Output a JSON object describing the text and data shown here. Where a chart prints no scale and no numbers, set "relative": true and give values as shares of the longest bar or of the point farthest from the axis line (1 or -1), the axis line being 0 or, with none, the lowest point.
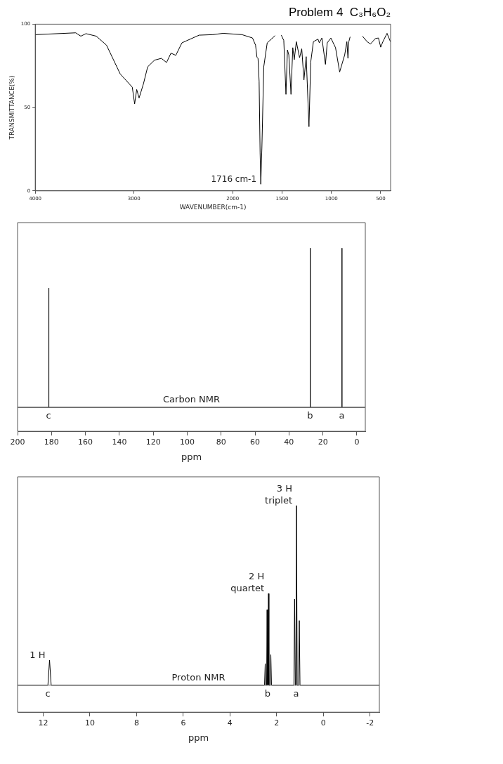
{
  "chart_data": [
    {
      "type": "line",
      "title": "Problem 4  C₃H₆O₂",
      "xlabel": "WAVENUMBER(cm-1)",
      "ylabel": "TRANSMITTANCE(%)",
      "xlim": [
        4000,
        400
      ],
      "xticks": [
        4000,
        3000,
        2000,
        1500,
        1000,
        500
      ],
      "ylim": [
        0,
        100
      ],
      "yticks": [
        0,
        50,
        100
      ],
      "grid": false,
      "legend": false,
      "marker": "none",
      "line_style": "solid",
      "annotations": [
        {
          "text": "1716 cm-1",
          "x": 1716,
          "y": 4
        }
      ],
      "series": [
        {
          "color": "#000000",
          "x": [
            4000,
            3590,
            3538,
            3486,
            3382,
            3278,
            3139,
            3017,
            2993,
            2972,
            2948,
            2903,
            2861,
            2792,
            2722,
            2670,
            2625,
            2576,
            2514,
            2340,
            2201,
            2097,
            1905,
            1799,
            1768,
            1754,
            1743,
            1732,
            1722,
            1715,
            1704,
            1685,
            1650,
            1570,
            1540,
            1507,
            1482,
            1460,
            1445,
            1431,
            1409,
            1391,
            1376,
            1355,
            1322,
            1300,
            1278,
            1255,
            1227,
            1209,
            1182,
            1136,
            1122,
            1096,
            1060,
            1042,
            1005,
            958,
            916,
            865,
            843,
            832,
            823,
            810,
            750,
            685,
            638,
            604,
            554,
            523,
            500,
            478,
            436,
            402
          ],
          "values": [
            93.7,
            94.8,
            92.8,
            94.3,
            92.8,
            87.4,
            70.1,
            62.2,
            52.2,
            60.8,
            55.7,
            64.4,
            74.4,
            78.4,
            79.5,
            77.0,
            82.6,
            81.3,
            88.8,
            93.4,
            93.7,
            94.5,
            93.7,
            91.7,
            87.4,
            80.2,
            79.5,
            65.8,
            22.7,
            4.0,
            25.6,
            74.4,
            88.8,
            93.1,
            null,
            93.4,
            90.2,
            57.9,
            84.5,
            81.6,
            57.9,
            85.9,
            78.7,
            89.5,
            79.9,
            85.2,
            66.5,
            80.5,
            38.5,
            77.3,
            89.5,
            91.0,
            88.8,
            91.7,
            75.9,
            88.8,
            91.7,
            85.9,
            71.3,
            81.6,
            89.5,
            79.5,
            89.5,
            92.4,
            null,
            92.8,
            89.5,
            88.1,
            91.4,
            91.7,
            86.2,
            89.5,
            94.5,
            89.5
          ]
        }
      ]
    },
    {
      "type": "line",
      "xlabel": "ppm",
      "relative": true,
      "xlim": [
        200,
        -5
      ],
      "xticks": [
        200,
        180,
        160,
        140,
        120,
        100,
        80,
        60,
        40,
        20,
        0
      ],
      "grid": false,
      "legend": false,
      "marker": "none",
      "line_style": "solid",
      "annotations": [
        "Carbon NMR",
        {
          "text": "c",
          "x": 181.7,
          "y": 0
        },
        {
          "text": "b",
          "x": 27.6,
          "y": 0
        },
        {
          "text": "a",
          "x": 8.9,
          "y": 0
        }
      ],
      "series": [
        {
          "color": "#000000",
          "x": [
            200,
            181.7,
            181.6,
            181.5,
            27.6,
            27.5,
            27.4,
            8.9,
            8.8,
            8.7,
            -5
          ],
          "values": [
            0,
            0,
            0.75,
            0,
            0,
            1,
            0,
            0,
            1,
            0,
            0
          ]
        }
      ]
    },
    {
      "type": "line",
      "xlabel": "ppm",
      "relative": true,
      "xlim": [
        13.1,
        -2.4
      ],
      "xticks": [
        12,
        10,
        8,
        6,
        4,
        2,
        0,
        -2
      ],
      "grid": false,
      "legend": false,
      "marker": "none",
      "line_style": "solid",
      "annotations": [
        "Proton NMR",
        {
          "text": "1 H",
          "x": 11.73,
          "y": 0.14
        },
        {
          "text": "2 H\nquartet",
          "x": 2.35,
          "y": 0.51
        },
        {
          "text": "3 H\ntriplet",
          "x": 1.15,
          "y": 1
        },
        {
          "text": "c",
          "x": 11.8,
          "y": 0
        },
        {
          "text": "b",
          "x": 2.39,
          "y": 0
        },
        {
          "text": "a",
          "x": 1.17,
          "y": 0
        }
      ],
      "series": [
        {
          "color": "#000000",
          "x": [
            13.1,
            11.8,
            11.73,
            11.66,
            2.52,
            2.49,
            2.47,
            2.43,
            2.41,
            2.39,
            2.37,
            2.35,
            2.33,
            2.28,
            2.25,
            2.22,
            1.26,
            1.23,
            1.2,
            1.17,
            1.15,
            1.12,
            1.06,
            1.03,
            1.0,
            -2.4
          ],
          "values": [
            0,
            0,
            0.14,
            0,
            0,
            0.12,
            0,
            0,
            0.42,
            0,
            0,
            0.51,
            0,
            0,
            0.17,
            0,
            0,
            0.48,
            0,
            0,
            1,
            0,
            0,
            0.36,
            0,
            0
          ]
        }
      ]
    }
  ]
}
